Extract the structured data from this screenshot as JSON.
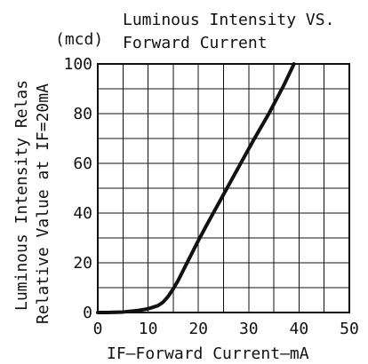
{
  "chart_data": {
    "type": "line",
    "title": "Luminous Intensity VS. Forward Current",
    "title_lines": [
      "Luminous Intensity VS.",
      "Forward Current"
    ],
    "unit_label": "(mcd)",
    "xlabel": "IF—Forward Current—mA",
    "ylabel": "Luminous Intensity Relas Relative Value at IF=20mA",
    "ylabel_lines": [
      "Luminous Intensity Relas",
      "Relative Value at IF=20mA"
    ],
    "xlim": [
      0,
      50
    ],
    "ylim": [
      0,
      100
    ],
    "x_ticks": [
      "0",
      "10",
      "20",
      "30",
      "40",
      "50"
    ],
    "y_ticks": [
      "0",
      "20",
      "40",
      "60",
      "80",
      "100"
    ],
    "grid": true,
    "legend": "none",
    "series": [
      {
        "x": [
          0,
          2,
          5,
          8,
          10,
          12,
          13,
          14,
          15,
          16,
          17,
          18,
          19,
          20,
          22,
          25,
          28,
          31,
          34,
          37,
          39
        ],
        "y": [
          0,
          0,
          0.2,
          0.8,
          1.5,
          2.8,
          4.2,
          6.5,
          9.5,
          13,
          17,
          21,
          25,
          29,
          36.5,
          47.5,
          58.5,
          69.5,
          80,
          91.5,
          100
        ],
        "color": "#111111"
      }
    ]
  }
}
